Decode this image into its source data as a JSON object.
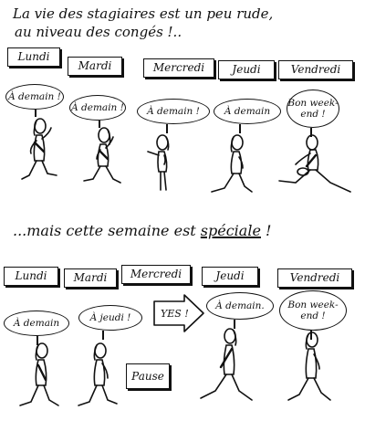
{
  "caption_top_line1": "La vie des stagiaires est un peu rude,",
  "caption_top_line2": "au niveau des congés !..",
  "caption_mid_before": "...mais cette semaine est ",
  "caption_mid_emphasis": "spéciale",
  "caption_mid_after": " !",
  "week1": {
    "days": [
      "Lundi",
      "Mardi",
      "Mercredi",
      "Jeudi",
      "Vendredi"
    ],
    "bubbles": [
      "À demain !",
      "À demain !",
      "À demain !",
      "À demain",
      "Bon week-\nend !"
    ]
  },
  "week2": {
    "days": [
      "Lundi",
      "Mardi",
      "Mercredi",
      "Jeudi",
      "Vendredi"
    ],
    "bubbles": [
      "À demain",
      "À jeudi !",
      "YES !",
      "À demain.",
      "Bon week-\nend !"
    ],
    "pause_label": "Pause"
  },
  "colors": {
    "ink": "#111111",
    "paper": "#ffffff"
  }
}
